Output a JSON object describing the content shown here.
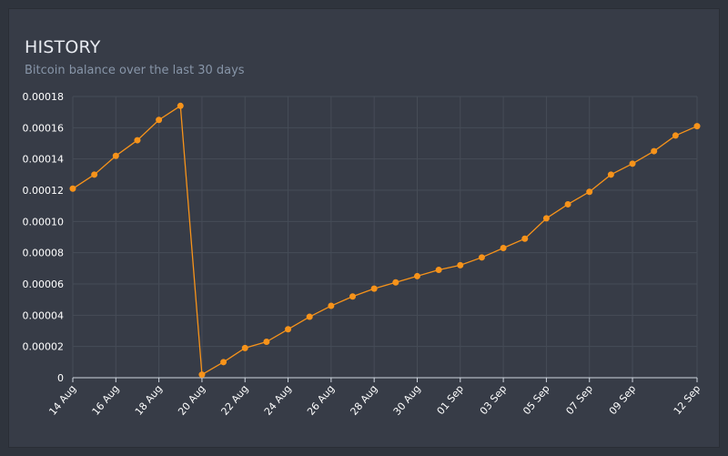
{
  "header": {
    "title": "HISTORY",
    "subtitle": "Bitcoin balance over the last 30 days"
  },
  "colors": {
    "background": "#2f343d",
    "panel": "#373c47",
    "grid": "#464c57",
    "axis": "#cfd6df",
    "series": "#f7931a",
    "title": "#e7eaf0",
    "subtitle": "#8795a8"
  },
  "chart_data": {
    "type": "line",
    "title": "",
    "xlabel": "",
    "ylabel": "",
    "ylim": [
      0,
      0.00018
    ],
    "y_ticks": [
      "0",
      "0.00002",
      "0.00004",
      "0.00006",
      "0.00008",
      "0.00010",
      "0.00012",
      "0.00014",
      "0.00016",
      "0.00018"
    ],
    "x_tick_labels": [
      "14 Aug",
      "16 Aug",
      "18 Aug",
      "20 Aug",
      "22 Aug",
      "24 Aug",
      "26 Aug",
      "28 Aug",
      "30 Aug",
      "01 Sep",
      "03 Sep",
      "05 Sep",
      "07 Sep",
      "09 Sep",
      "12 Sep"
    ],
    "grid": true,
    "legend": "none",
    "x": [
      "14 Aug",
      "15 Aug",
      "16 Aug",
      "17 Aug",
      "18 Aug",
      "19 Aug",
      "20 Aug",
      "21 Aug",
      "22 Aug",
      "23 Aug",
      "24 Aug",
      "25 Aug",
      "26 Aug",
      "27 Aug",
      "28 Aug",
      "29 Aug",
      "30 Aug",
      "31 Aug",
      "01 Sep",
      "02 Sep",
      "03 Sep",
      "04 Sep",
      "05 Sep",
      "06 Sep",
      "07 Sep",
      "08 Sep",
      "09 Sep",
      "10 Sep",
      "11 Sep",
      "12 Sep"
    ],
    "series": [
      {
        "values": [
          0.000121,
          0.00013,
          0.000142,
          0.000152,
          0.000165,
          0.000174,
          2e-06,
          1e-05,
          1.9e-05,
          2.3e-05,
          3.1e-05,
          3.9e-05,
          4.6e-05,
          5.2e-05,
          5.7e-05,
          6.1e-05,
          6.5e-05,
          6.9e-05,
          7.2e-05,
          7.7e-05,
          8.3e-05,
          8.9e-05,
          0.000102,
          0.000111,
          0.000119,
          0.00013,
          0.000137,
          0.000145,
          0.000155,
          0.000161
        ]
      }
    ]
  }
}
